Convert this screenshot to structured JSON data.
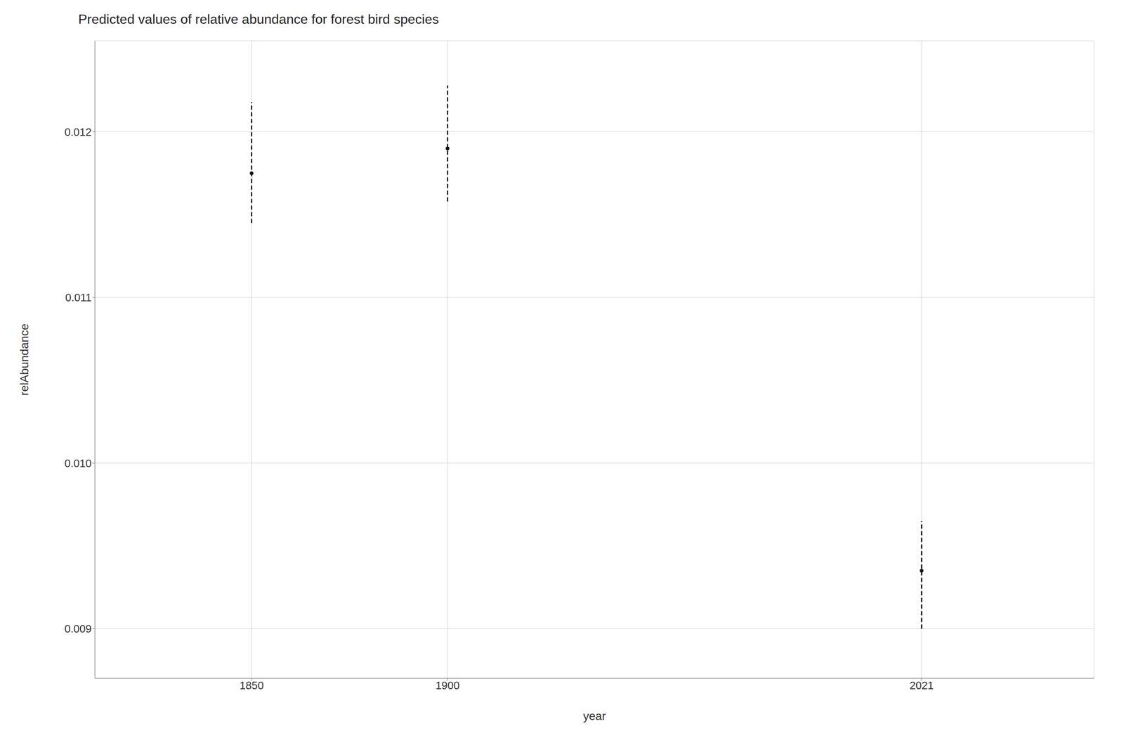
{
  "chart_data": {
    "type": "scatter",
    "title": "Predicted values of relative abundance for forest bird species",
    "xlabel": "year",
    "ylabel": "relAbundance",
    "x": [
      1850,
      1900,
      2021
    ],
    "values": [
      0.01175,
      0.0119,
      0.00935
    ],
    "y_upper": [
      0.01218,
      0.01228,
      0.00965
    ],
    "y_lower": [
      0.01145,
      0.01158,
      0.009
    ],
    "xlim": [
      1810,
      2065
    ],
    "xticks": [
      1850,
      1900,
      2021
    ],
    "ylim": [
      0.0087,
      0.01255
    ],
    "yticks": [
      0.009,
      {
        "value": 0.01,
        "label": "0.010"
      },
      0.011,
      0.012
    ],
    "grid": true,
    "color": "#111111",
    "line_style": "dashed"
  }
}
